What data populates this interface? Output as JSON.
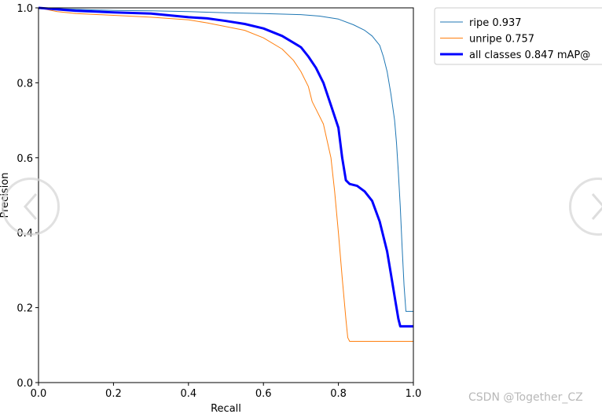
{
  "chart_data": {
    "type": "line",
    "title": "",
    "xlabel": "Recall",
    "ylabel": "Precision",
    "xlim": [
      0.0,
      1.0
    ],
    "ylim": [
      0.0,
      1.0
    ],
    "xticks": [
      "0.0",
      "0.2",
      "0.4",
      "0.6",
      "0.8",
      "1.0"
    ],
    "yticks": [
      "0.0",
      "0.2",
      "0.4",
      "0.6",
      "0.8",
      "1.0"
    ],
    "grid": false,
    "legend_position": "outside-top-right",
    "series": [
      {
        "name": "ripe 0.937",
        "color": "#1f77b4",
        "width": 1,
        "x": [
          0.0,
          0.05,
          0.1,
          0.2,
          0.3,
          0.4,
          0.5,
          0.6,
          0.7,
          0.75,
          0.8,
          0.84,
          0.87,
          0.89,
          0.91,
          0.92,
          0.93,
          0.94,
          0.95,
          0.955,
          0.96,
          0.965,
          0.97,
          0.975,
          0.98,
          0.985,
          1.0
        ],
        "y": [
          1.0,
          0.998,
          0.996,
          0.993,
          0.992,
          0.99,
          0.987,
          0.985,
          0.982,
          0.978,
          0.97,
          0.955,
          0.94,
          0.925,
          0.9,
          0.87,
          0.83,
          0.77,
          0.7,
          0.64,
          0.56,
          0.47,
          0.36,
          0.26,
          0.19,
          0.19,
          0.19
        ]
      },
      {
        "name": "unripe 0.757",
        "color": "#ff7f0e",
        "width": 1,
        "x": [
          0.0,
          0.05,
          0.1,
          0.2,
          0.3,
          0.4,
          0.45,
          0.5,
          0.55,
          0.6,
          0.65,
          0.68,
          0.7,
          0.72,
          0.73,
          0.74,
          0.76,
          0.78,
          0.79,
          0.8,
          0.81,
          0.82,
          0.825,
          0.83,
          1.0
        ],
        "y": [
          1.0,
          0.99,
          0.985,
          0.98,
          0.975,
          0.968,
          0.96,
          0.95,
          0.94,
          0.92,
          0.89,
          0.86,
          0.83,
          0.79,
          0.75,
          0.73,
          0.69,
          0.6,
          0.51,
          0.4,
          0.28,
          0.17,
          0.12,
          0.11,
          0.11
        ]
      },
      {
        "name": "all classes 0.847 mAP@",
        "color": "#0000ff",
        "width": 3,
        "x": [
          0.0,
          0.05,
          0.1,
          0.2,
          0.3,
          0.4,
          0.45,
          0.5,
          0.55,
          0.6,
          0.65,
          0.7,
          0.72,
          0.74,
          0.76,
          0.78,
          0.8,
          0.81,
          0.82,
          0.83,
          0.85,
          0.87,
          0.89,
          0.91,
          0.93,
          0.94,
          0.95,
          0.96,
          0.965,
          0.97,
          0.98,
          1.0
        ],
        "y": [
          1.0,
          0.996,
          0.992,
          0.988,
          0.985,
          0.975,
          0.972,
          0.965,
          0.957,
          0.945,
          0.925,
          0.895,
          0.87,
          0.84,
          0.8,
          0.74,
          0.68,
          0.6,
          0.54,
          0.53,
          0.525,
          0.51,
          0.485,
          0.43,
          0.35,
          0.29,
          0.23,
          0.17,
          0.15,
          0.15,
          0.15,
          0.15
        ]
      }
    ]
  },
  "watermark": "CSDN @Together_CZ"
}
